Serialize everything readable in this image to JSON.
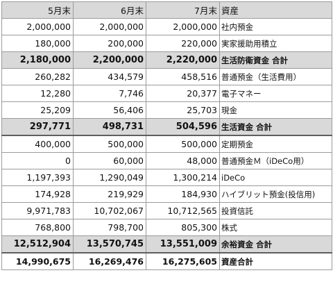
{
  "header": {
    "col1": "5月末",
    "col2": "6月末",
    "col3": "7月末",
    "col4": "資産"
  },
  "rows": [
    {
      "v1": "2,000,000",
      "v2": "2,000,000",
      "v3": "2,000,000",
      "label": "社内預金"
    },
    {
      "v1": "180,000",
      "v2": "200,000",
      "v3": "220,000",
      "label": "実家援助用積立"
    },
    {
      "v1": "2,180,000",
      "v2": "2,200,000",
      "v3": "2,220,000",
      "label": "生活防衛資金 合計"
    },
    {
      "v1": "260,282",
      "v2": "434,579",
      "v3": "458,516",
      "label": "普通預金（生活費用）"
    },
    {
      "v1": "12,280",
      "v2": "7,746",
      "v3": "20,377",
      "label": "電子マネー"
    },
    {
      "v1": "25,209",
      "v2": "56,406",
      "v3": "25,703",
      "label": "現金"
    },
    {
      "v1": "297,771",
      "v2": "498,731",
      "v3": "504,596",
      "label": "生活資金 合計"
    },
    {
      "v1": "400,000",
      "v2": "500,000",
      "v3": "500,000",
      "label": "定期預金"
    },
    {
      "v1": "0",
      "v2": "60,000",
      "v3": "48,000",
      "label": "普通預金Ｍ（iDeCo用）"
    },
    {
      "v1": "1,197,393",
      "v2": "1,290,049",
      "v3": "1,300,214",
      "label": "iDeCo"
    },
    {
      "v1": "174,928",
      "v2": "219,929",
      "v3": "184,930",
      "label": "ハイブリット預金(投信用)"
    },
    {
      "v1": "9,971,783",
      "v2": "10,702,067",
      "v3": "10,712,565",
      "label": "投資信託"
    },
    {
      "v1": "768,800",
      "v2": "798,700",
      "v3": "805,300",
      "label": "株式"
    },
    {
      "v1": "12,512,904",
      "v2": "13,570,745",
      "v3": "13,551,009",
      "label": "余裕資金 合計"
    },
    {
      "v1": "14,990,675",
      "v2": "16,269,476",
      "v3": "16,275,605",
      "label": "資産合計"
    }
  ]
}
